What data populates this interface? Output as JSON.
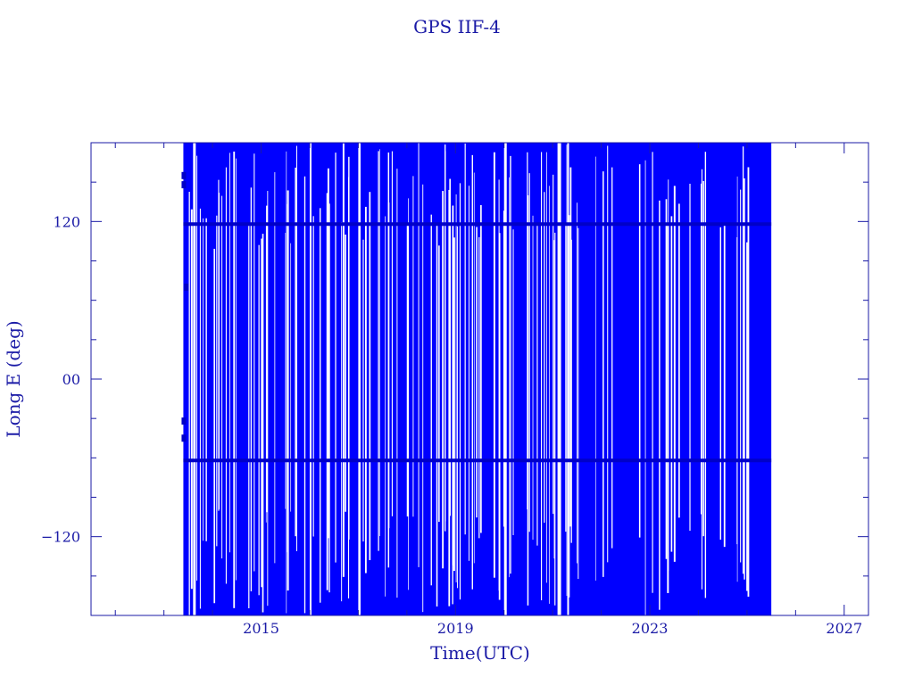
{
  "chart_data": {
    "type": "line",
    "title": "GPS IIF-4",
    "xlabel": "Time(UTC)",
    "ylabel": "Long E (deg)",
    "xlim": [
      2011.5,
      2027.5
    ],
    "ylim": [
      -180,
      180
    ],
    "x_ticks": [
      2015,
      2019,
      2023,
      2027
    ],
    "y_ticks": [
      -120,
      0,
      120
    ],
    "y_tick_labels": [
      "−120",
      "00",
      "120"
    ],
    "grid": false,
    "legend": "none",
    "data_range": [
      2013.4,
      2025.5
    ],
    "stable_tracks": [
      118,
      -62
    ],
    "colors": {
      "axis": "#1a1aa6",
      "data": "#0000ff",
      "text": "#1a1aa6"
    }
  }
}
